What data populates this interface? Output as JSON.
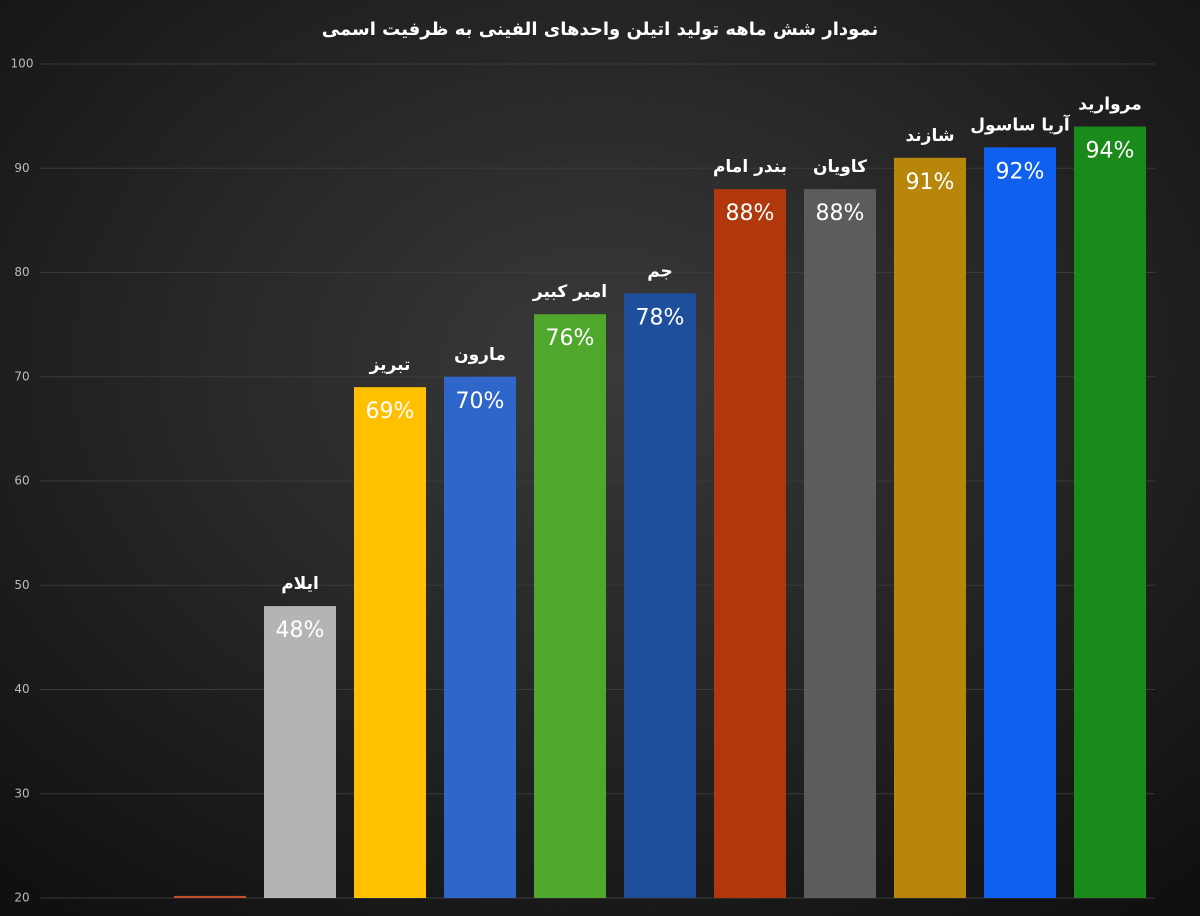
{
  "chart_data": {
    "type": "bar",
    "title": "نمودار شش ماهه تولید اتیلن واحدهای الفینی به ظرفیت اسمی",
    "categories": [
      null,
      "ایلام",
      "تبریز",
      "مارون",
      "امیر کبیر",
      "جم",
      "بندر امام",
      "کاویان",
      "شازند",
      "آریا ساسول",
      "مروارید"
    ],
    "values": [
      20.2,
      48,
      69,
      70,
      76,
      78,
      88,
      88,
      91,
      92,
      94
    ],
    "value_labels": [
      null,
      "48%",
      "69%",
      "70%",
      "76%",
      "78%",
      "88%",
      "88%",
      "91%",
      "92%",
      "94%"
    ],
    "colors": [
      "#c0502a",
      "#b4b4b4",
      "#ffc000",
      "#2f66c9",
      "#4fa82b",
      "#1e4f9c",
      "#b0380c",
      "#5c5c5c",
      "#b8860b",
      "#1060f0",
      "#1a8a1a"
    ],
    "ylim": [
      20,
      100
    ],
    "yticks": [
      20,
      30,
      40,
      50,
      60,
      70,
      80,
      90,
      100
    ],
    "grid": true
  }
}
